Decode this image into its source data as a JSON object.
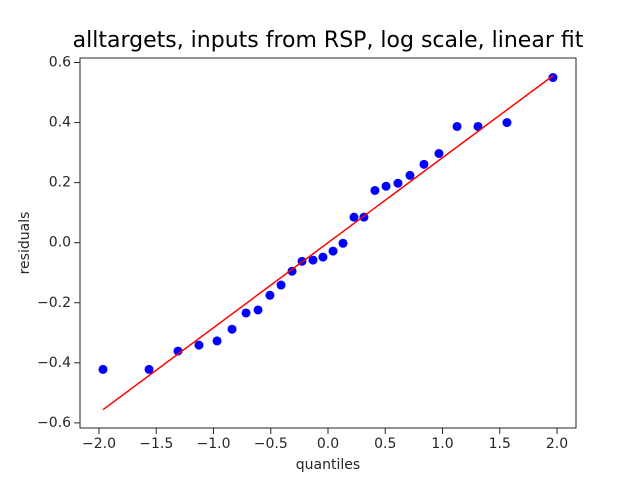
{
  "chart_data": {
    "type": "scatter",
    "title": "alltargets, inputs from RSP, log scale, linear fit",
    "x_label": "quantiles",
    "y_label": "residuals",
    "series": [
      {
        "color": "#0000ff",
        "x": [
          -1.965,
          -1.563,
          -1.31,
          -1.127,
          -0.969,
          -0.838,
          -0.716,
          -0.611,
          -0.507,
          -0.41,
          -0.314,
          -0.227,
          -0.131,
          -0.044,
          0.044,
          0.131,
          0.227,
          0.314,
          0.41,
          0.507,
          0.611,
          0.716,
          0.838,
          0.969,
          1.127,
          1.31,
          1.563,
          1.965
        ],
        "values": [
          -0.422,
          -0.422,
          -0.361,
          -0.341,
          -0.327,
          -0.288,
          -0.234,
          -0.224,
          -0.175,
          -0.141,
          -0.095,
          -0.062,
          -0.058,
          -0.048,
          -0.028,
          -0.002,
          0.085,
          0.085,
          0.174,
          0.188,
          0.198,
          0.224,
          0.261,
          0.297,
          0.387,
          0.387,
          0.4,
          0.55
        ]
      }
    ],
    "fit_line": {
      "color": "#ff0000",
      "x": [
        -1.965,
        1.965
      ],
      "values": [
        -0.556,
        0.556
      ]
    },
    "xlim": [
      -2.166,
      2.166
    ],
    "ylim": [
      -0.617,
      0.615
    ],
    "xticks": [
      {
        "value": -2.0,
        "label": "−2.0"
      },
      {
        "value": -1.5,
        "label": "−1.5"
      },
      {
        "value": -1.0,
        "label": "−1.0"
      },
      {
        "value": -0.5,
        "label": "−0.5"
      },
      {
        "value": 0,
        "label": "0.0"
      },
      0.5,
      {
        "value": 1.0,
        "label": "1.0"
      },
      1.5,
      {
        "value": 2.0,
        "label": "2.0"
      }
    ],
    "yticks": [
      {
        "value": -0.6,
        "label": "−0.6"
      },
      {
        "value": -0.4,
        "label": "−0.4"
      },
      {
        "value": -0.2,
        "label": "−0.2"
      },
      {
        "value": 0,
        "label": "0.0"
      },
      0.2,
      0.4,
      0.6
    ],
    "grid": false
  }
}
